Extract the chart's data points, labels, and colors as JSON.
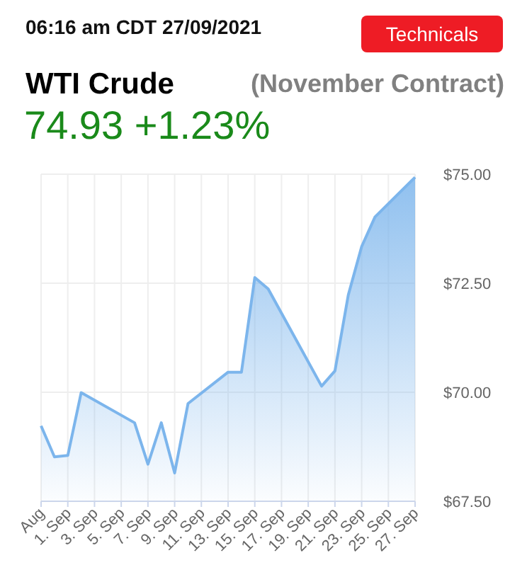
{
  "chart_data": {
    "type": "area",
    "title": "WTI Crude",
    "subtitle": "(November Contract)",
    "annotations": [
      "06:16 am CDT 27/09/2021",
      "74.93 +1.23%",
      "Technicals"
    ],
    "x": [
      "2021-08-30",
      "2021-08-31",
      "2021-09-01",
      "2021-09-02",
      "2021-09-06",
      "2021-09-07",
      "2021-09-08",
      "2021-09-09",
      "2021-09-10",
      "2021-09-13",
      "2021-09-14",
      "2021-09-15",
      "2021-09-16",
      "2021-09-20",
      "2021-09-21",
      "2021-09-22",
      "2021-09-23",
      "2021-09-24",
      "2021-09-27"
    ],
    "series": [
      {
        "color": "#7cb5ec",
        "values": [
          69.23,
          68.52,
          68.55,
          69.99,
          69.3,
          68.35,
          69.3,
          68.15,
          69.74,
          70.46,
          70.46,
          72.63,
          72.37,
          70.14,
          70.49,
          72.23,
          73.34,
          74.02,
          74.93
        ]
      }
    ],
    "xlim": [
      "2021-08-30",
      "2021-09-27"
    ],
    "xticks": [
      {
        "value": "2021-08-30",
        "label": "Aug"
      },
      {
        "value": "2021-09-01",
        "label": "1. Sep"
      },
      {
        "value": "2021-09-03",
        "label": "3. Sep"
      },
      {
        "value": "2021-09-05",
        "label": "5. Sep"
      },
      {
        "value": "2021-09-07",
        "label": "7. Sep"
      },
      {
        "value": "2021-09-09",
        "label": "9. Sep"
      },
      {
        "value": "2021-09-11",
        "label": "11. Sep"
      },
      {
        "value": "2021-09-13",
        "label": "13. Sep"
      },
      {
        "value": "2021-09-15",
        "label": "15. Sep"
      },
      {
        "value": "2021-09-17",
        "label": "17. Sep"
      },
      {
        "value": "2021-09-19",
        "label": "19. Sep"
      },
      {
        "value": "2021-09-21",
        "label": "21. Sep"
      },
      {
        "value": "2021-09-23",
        "label": "23. Sep"
      },
      {
        "value": "2021-09-25",
        "label": "25. Sep"
      },
      {
        "value": "2021-09-27",
        "label": "27. Sep"
      }
    ],
    "ylim": [
      67.5,
      75
    ],
    "yticks": [
      {
        "value": 67.5,
        "label": "$67.50"
      },
      {
        "value": 70,
        "label": "$70.00"
      },
      {
        "value": 72.5,
        "label": "$72.50"
      },
      {
        "value": 75,
        "label": "$75.00"
      }
    ],
    "grid": true,
    "marker": "none",
    "line_style": "solid"
  }
}
